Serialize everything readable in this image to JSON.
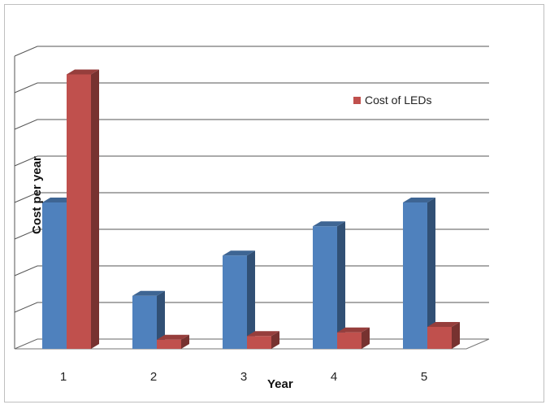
{
  "chart_data": {
    "type": "bar",
    "categories": [
      "1",
      "2",
      "3",
      "4",
      "5"
    ],
    "xlabel": "Year",
    "ylabel": "Cost per year",
    "ylim": [
      0,
      8
    ],
    "grid": true,
    "legend": {
      "placement": "top-right",
      "entries": [
        "Cost of LEDs"
      ]
    },
    "series": [
      {
        "values": [
          4.0,
          1.45,
          2.55,
          3.35,
          4.0
        ],
        "color": "#4F81BD"
      },
      {
        "name": "Cost of LEDs",
        "values": [
          7.5,
          0.25,
          0.35,
          0.45,
          0.6
        ],
        "color": "#C0504D"
      }
    ]
  }
}
